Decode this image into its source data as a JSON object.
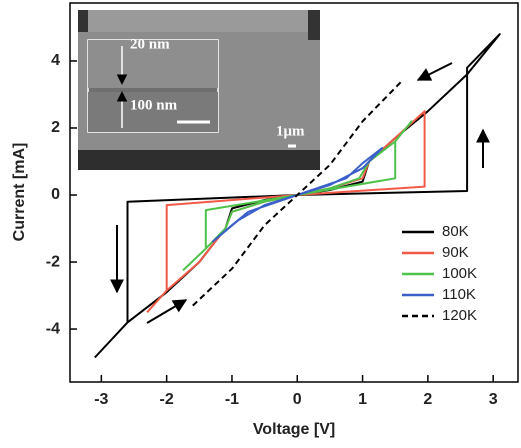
{
  "chart_data": {
    "type": "line",
    "xlabel": "Voltage [V]",
    "ylabel": "Current [mA]",
    "xlim": [
      -3.48,
      3.38
    ],
    "ylim": [
      -5.58,
      5.73
    ],
    "xticks": [
      -3,
      -2,
      -1,
      0,
      1,
      2,
      3
    ],
    "yticks": [
      -4,
      -2,
      0,
      2,
      4
    ],
    "legend": "lower right",
    "series": [
      {
        "name": "80K",
        "color": "#000000",
        "linestyle": "solid",
        "x": [
          -3.1,
          -2.6,
          -2.0,
          -1.5,
          -1.1,
          -1.0,
          -0.5,
          0,
          0.5,
          1.0,
          1.1,
          1.5,
          2.0,
          2.6,
          3.1,
          2.6,
          2.6,
          0,
          -2.6,
          -2.6
        ],
        "values": [
          -4.85,
          -3.8,
          -2.9,
          -2.0,
          -1.0,
          -0.4,
          -0.15,
          0,
          0.15,
          0.4,
          1.0,
          1.7,
          2.5,
          3.6,
          4.8,
          3.8,
          0.12,
          0,
          -0.2,
          -3.8
        ]
      },
      {
        "name": "90K",
        "color": "#f05a46",
        "linestyle": "solid",
        "x": [
          -2.3,
          -2.0,
          -1.5,
          -1.1,
          -1.0,
          -0.5,
          0,
          0.5,
          1.0,
          1.1,
          1.5,
          1.95,
          1.95,
          0,
          -2.0,
          -2.0
        ],
        "values": [
          -3.5,
          -2.85,
          -2.0,
          -1.0,
          -0.5,
          -0.2,
          0,
          0.2,
          0.5,
          1.0,
          1.7,
          2.5,
          0.25,
          0,
          -0.3,
          -2.85
        ]
      },
      {
        "name": "100K",
        "color": "#4fc24a",
        "linestyle": "solid",
        "x": [
          -1.75,
          -1.4,
          -1.1,
          -1.0,
          -0.5,
          0,
          0.5,
          0.95,
          1.1,
          1.5,
          1.75,
          1.5,
          1.5,
          0,
          -1.4,
          -1.4
        ],
        "values": [
          -2.25,
          -1.6,
          -1.0,
          -0.5,
          -0.2,
          0,
          0.2,
          0.5,
          1.0,
          1.6,
          2.2,
          1.6,
          0.5,
          0,
          -0.45,
          -1.6
        ]
      },
      {
        "name": "110K",
        "color": "#3a5fc8",
        "linestyle": "solid",
        "x": [
          -1.3,
          -0.9,
          -0.5,
          0,
          0.5,
          1.0,
          1.3,
          1.0,
          0.75,
          0,
          -0.75,
          -1.0,
          -1.3
        ],
        "values": [
          -1.4,
          -0.75,
          -0.3,
          0,
          0.3,
          0.8,
          1.4,
          0.95,
          0.5,
          0,
          -0.5,
          -0.9,
          -1.4
        ]
      },
      {
        "name": "120K",
        "color": "#000000",
        "linestyle": "dashed",
        "x": [
          -1.6,
          -1.0,
          -0.5,
          0,
          0.5,
          1.0,
          1.6
        ],
        "values": [
          -3.3,
          -2.2,
          -0.9,
          0,
          0.9,
          2.2,
          3.4
        ]
      }
    ],
    "inset_labels": [
      "20 nm",
      "100 nm",
      "1μm"
    ]
  }
}
